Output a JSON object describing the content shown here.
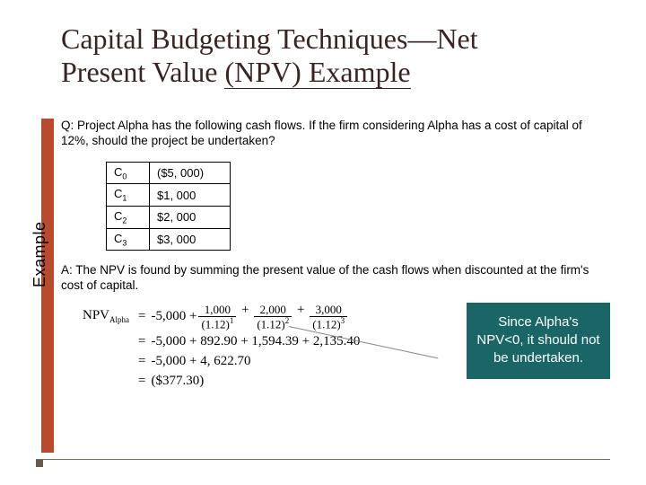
{
  "title_line1": "Capital Budgeting Techniques—Net",
  "title_line2a": "Present Value ",
  "title_line2b": "(NPV) Example",
  "question": "Q:  Project Alpha has the following cash flows.  If the firm considering Alpha has a cost of capital of 12%, should the project be undertaken?",
  "cashflows": [
    {
      "label": "C",
      "sub": "0",
      "value": "($5, 000)"
    },
    {
      "label": "C",
      "sub": "1",
      "value": "$1, 000"
    },
    {
      "label": "C",
      "sub": "2",
      "value": "$2, 000"
    },
    {
      "label": "C",
      "sub": "3",
      "value": "$3, 000"
    }
  ],
  "example_label": "Example",
  "answer": "A:  The NPV is found by summing the present value of the cash flows when discounted at the firm's cost of capital.",
  "formula": {
    "lhs_text": "NPV",
    "lhs_sub": "Alpha",
    "row1_lead": "-5,000 +",
    "terms": [
      {
        "num": "1,000",
        "den": "(1.12)",
        "exp": "1"
      },
      {
        "num": "2,000",
        "den": "(1.12)",
        "exp": "2"
      },
      {
        "num": "3,000",
        "den": "(1.12)",
        "exp": "3"
      }
    ],
    "row2": "-5,000 + 892.90 + 1,594.39 + 2,135.40",
    "row3": "-5,000 + 4, 622.70",
    "row4": "($377.30)"
  },
  "callout_text": "Since Alpha's NPV<0, it should not be undertaken.",
  "colors": {
    "title": "#3a2323",
    "accent": "#b84a2e",
    "callout_bg": "#1a6666",
    "callout_fg": "#ffffff",
    "rule": "#7a6a5a"
  }
}
